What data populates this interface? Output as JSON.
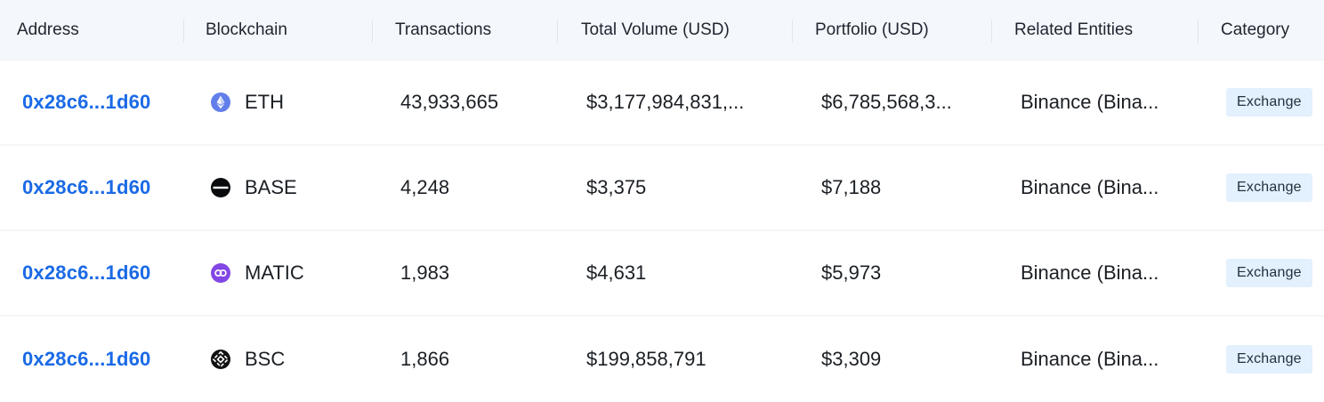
{
  "columns": {
    "address": "Address",
    "blockchain": "Blockchain",
    "transactions": "Transactions",
    "total_volume": "Total Volume (USD)",
    "portfolio": "Portfolio (USD)",
    "related_entities": "Related Entities",
    "category": "Category"
  },
  "rows": [
    {
      "address": "0x28c6...1d60",
      "chain": "ETH",
      "chain_icon": "ethereum-icon",
      "transactions": "43,933,665",
      "total_volume": "$3,177,984,831,...",
      "portfolio": "$6,785,568,3...",
      "related_entities": "Binance (Bina...",
      "category": "Exchange"
    },
    {
      "address": "0x28c6...1d60",
      "chain": "BASE",
      "chain_icon": "base-icon",
      "transactions": "4,248",
      "total_volume": "$3,375",
      "portfolio": "$7,188",
      "related_entities": "Binance (Bina...",
      "category": "Exchange"
    },
    {
      "address": "0x28c6...1d60",
      "chain": "MATIC",
      "chain_icon": "polygon-icon",
      "transactions": "1,983",
      "total_volume": "$4,631",
      "portfolio": "$5,973",
      "related_entities": "Binance (Bina...",
      "category": "Exchange"
    },
    {
      "address": "0x28c6...1d60",
      "chain": "BSC",
      "chain_icon": "bnb-icon",
      "transactions": "1,866",
      "total_volume": "$199,858,791",
      "portfolio": "$3,309",
      "related_entities": "Binance (Bina...",
      "category": "Exchange"
    }
  ],
  "colors": {
    "link": "#1a6ae6",
    "header_bg": "#f4f7fb",
    "badge_bg": "#e3f0fd",
    "eth": "#627eea",
    "polygon": "#8247e5"
  }
}
